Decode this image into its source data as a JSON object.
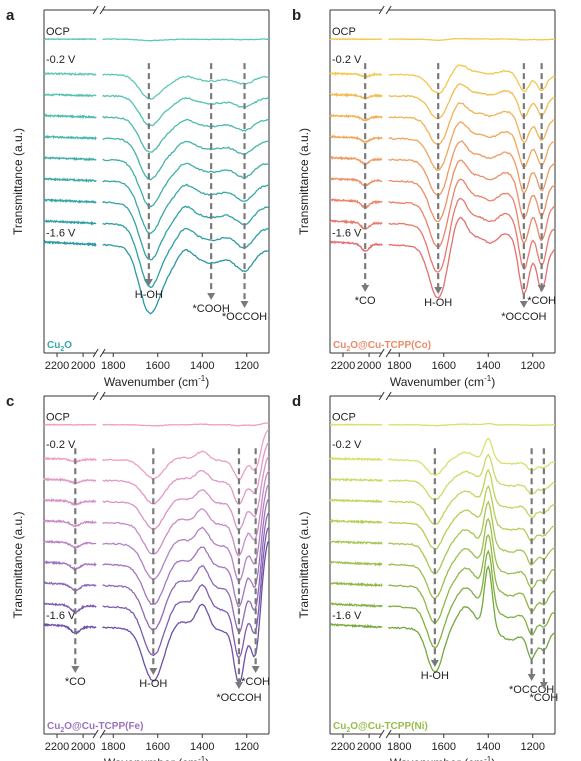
{
  "chart_data": [
    {
      "type": "line",
      "panel_letter": "a",
      "xlabel": "Wavenumber (cm",
      "xlabel_sup": "-1",
      "xlabel_end": ")",
      "ylabel": "Transmittance (a.u.)",
      "x_ticks": [
        "2200",
        "2000",
        "1800",
        "1600",
        "1400",
        "1200"
      ],
      "x_ranges": [
        [
          2300,
          1900
        ],
        [
          1850,
          1100
        ]
      ],
      "potentials": [
        "OCP",
        "-0.2 V",
        "-1.6 V"
      ],
      "sample_label": "Cu",
      "sample_sub": "2",
      "sample_end": "O",
      "colors": [
        "#5ec8b8",
        "#47b6ab",
        "#36a7a5",
        "#2a98a3"
      ],
      "annotations": [
        {
          "text": "H-OH",
          "x": 1640
        },
        {
          "text": "*COOH",
          "x": 1360
        },
        {
          "text": "*OCCOH",
          "x": 1210
        }
      ]
    },
    {
      "type": "line",
      "panel_letter": "b",
      "xlabel": "Wavenumber (cm",
      "xlabel_sup": "-1",
      "xlabel_end": ")",
      "ylabel": "Transmittance (a.u.)",
      "x_ticks": [
        "2200",
        "2000",
        "1800",
        "1600",
        "1400",
        "1200"
      ],
      "x_ranges": [
        [
          2300,
          1900
        ],
        [
          1850,
          1100
        ]
      ],
      "potentials": [
        "OCP",
        "-0.2 V",
        "-1.6 V"
      ],
      "sample_label": "Cu",
      "sample_sub": "2",
      "sample_end": "O@Cu-TCPP(Co)",
      "colors": [
        "#f2c94c",
        "#f0aa5a",
        "#ec8a68",
        "#e46f6f"
      ],
      "annotations": [
        {
          "text": "*CO",
          "x": 2030
        },
        {
          "text": "H-OH",
          "x": 1625
        },
        {
          "text": "*OCCOH",
          "x": 1240
        },
        {
          "text": "*COH",
          "x": 1160
        }
      ]
    },
    {
      "type": "line",
      "panel_letter": "c",
      "xlabel": "Wavenumber (cm",
      "xlabel_sup": "-1",
      "xlabel_end": ")",
      "ylabel": "Transmittance (a.u.)",
      "x_ticks": [
        "2200",
        "2000",
        "1800",
        "1600",
        "1400",
        "1200"
      ],
      "x_ranges": [
        [
          2300,
          1900
        ],
        [
          1850,
          1100
        ]
      ],
      "potentials": [
        "OCP",
        "-0.2 V",
        "-1.6 V"
      ],
      "sample_label": "Cu",
      "sample_sub": "2",
      "sample_end": "O@Cu-TCPP(Fe)",
      "colors": [
        "#ee9fc4",
        "#cf90c8",
        "#9a72bd",
        "#6d4fa8"
      ],
      "annotations": [
        {
          "text": "*CO",
          "x": 2060
        },
        {
          "text": "H-OH",
          "x": 1620
        },
        {
          "text": "*OCCOH",
          "x": 1235
        },
        {
          "text": "*COH",
          "x": 1160
        }
      ]
    },
    {
      "type": "line",
      "panel_letter": "d",
      "xlabel": "Wavenumber (cm",
      "xlabel_sup": "-1",
      "xlabel_end": ")",
      "ylabel": "Transmittance (a.u.)",
      "x_ticks": [
        "2200",
        "2000",
        "1800",
        "1600",
        "1400",
        "1200"
      ],
      "x_ranges": [
        [
          2300,
          1900
        ],
        [
          1850,
          1100
        ]
      ],
      "potentials": [
        "OCP",
        "-0.2 V",
        "-1.6 V"
      ],
      "sample_label": "Cu",
      "sample_sub": "2",
      "sample_end": "O@Cu-TCPP(Ni)",
      "colors": [
        "#d9e06a",
        "#b8d15a",
        "#97bd49",
        "#75a83c"
      ],
      "annotations": [
        {
          "text": "H-OH",
          "x": 1640
        },
        {
          "text": "*OCCOH",
          "x": 1205
        },
        {
          "text": "*COH",
          "x": 1150
        }
      ]
    }
  ]
}
